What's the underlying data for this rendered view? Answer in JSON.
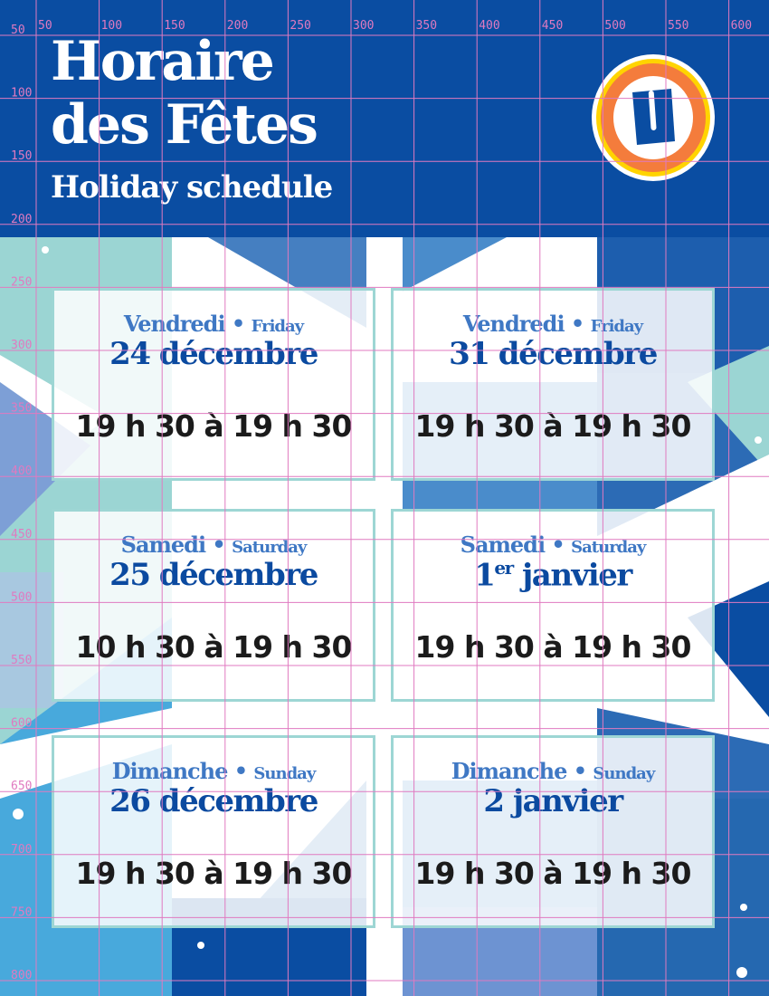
{
  "header": {
    "title_line1": "Horaire",
    "title_line2": "des Fêtes",
    "subtitle": "Holiday schedule",
    "logo_letter": "U"
  },
  "colors": {
    "brand_blue": "#0a4da2",
    "day_blue": "#3f78c4",
    "card_border": "#9dd6d4",
    "logo_orange": "#f47c3c",
    "logo_yellow": "#ffd400",
    "grid": "#e07ac0"
  },
  "schedule": [
    {
      "day_fr": "Vendredi",
      "day_en": "Friday",
      "date": "24 décembre",
      "date_sup": "",
      "hours": "19 h 30 à 19 h 30"
    },
    {
      "day_fr": "Vendredi",
      "day_en": "Friday",
      "date": "31 décembre",
      "date_sup": "",
      "hours": "19 h 30 à 19 h 30"
    },
    {
      "day_fr": "Samedi",
      "day_en": "Saturday",
      "date": "25 décembre",
      "date_sup": "",
      "hours": "10 h 30 à 19 h 30"
    },
    {
      "day_fr": "Samedi",
      "day_en": "Saturday",
      "date_num": "1",
      "date_sup": "er",
      "date": " janvier",
      "hours": "19 h 30 à 19 h 30"
    },
    {
      "day_fr": "Dimanche",
      "day_en": "Sunday",
      "date": "26 décembre",
      "date_sup": "",
      "hours": "19 h 30 à 19 h 30"
    },
    {
      "day_fr": "Dimanche",
      "day_en": "Sunday",
      "date": "2 janvier",
      "date_sup": "",
      "hours": "19 h 30 à 19 h 30"
    }
  ],
  "grid_overlay": {
    "x_labels": [
      "50",
      "100",
      "150",
      "200",
      "250",
      "300",
      "350",
      "400",
      "450",
      "500",
      "550",
      "600"
    ],
    "y_labels": [
      "50",
      "100",
      "150",
      "200",
      "250",
      "300",
      "350",
      "400",
      "450",
      "500",
      "550",
      "600",
      "650",
      "700",
      "750",
      "800"
    ]
  }
}
